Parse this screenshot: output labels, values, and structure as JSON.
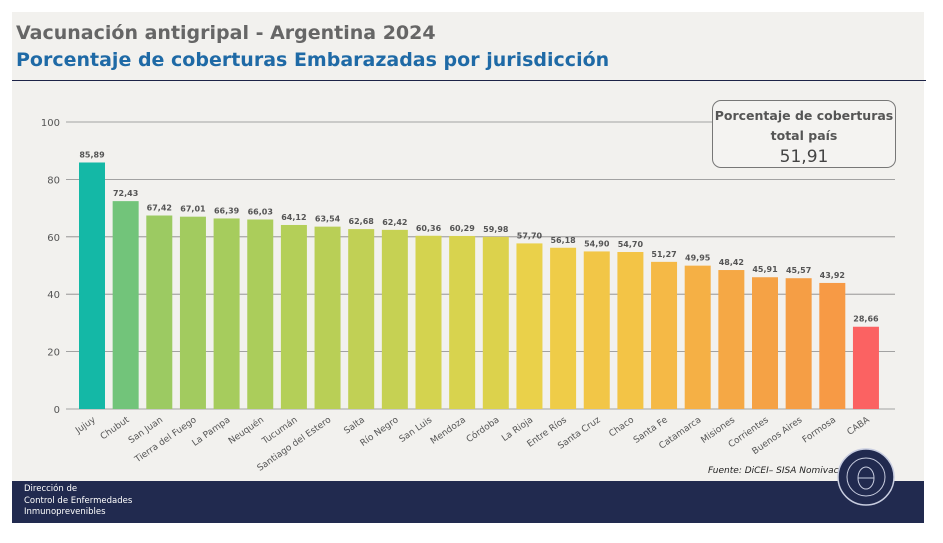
{
  "header": {
    "title": "Vacunación antigripal - Argentina 2024",
    "subtitle": "Porcentaje de coberturas Embarazadas por jurisdicción"
  },
  "kpi": {
    "label_line1": "Porcentaje de coberturas",
    "label_line2": "total país",
    "value": "51,91"
  },
  "source": "Fuente: DiCEI– SISA Nomivac",
  "footer": {
    "line1": "Dirección de",
    "line2": "Control de Enfermedades",
    "line3": "Inmunoprevenibles"
  },
  "seal": {
    "text": "MINISTERIO DE SALUD · REPÚBLICA ARGENTINA"
  },
  "chart_data": {
    "type": "bar",
    "ylim": [
      0,
      100
    ],
    "yticks": [
      0,
      20,
      40,
      60,
      80,
      100
    ],
    "grid": true,
    "categories": [
      "Jujuy",
      "Chubut",
      "San Juan",
      "Tierra del Fuego",
      "La Pampa",
      "Neuquén",
      "Tucumán",
      "Santiago del Estero",
      "Salta",
      "Río Negro",
      "San Luis",
      "Mendoza",
      "Córdoba",
      "La Rioja",
      "Entre Ríos",
      "Santa Cruz",
      "Chaco",
      "Santa Fe",
      "Catamarca",
      "Misiones",
      "Corrientes",
      "Buenos Aires",
      "Formosa",
      "CABA"
    ],
    "values": [
      85.89,
      72.43,
      67.42,
      67.01,
      66.39,
      66.03,
      64.12,
      63.54,
      62.68,
      62.42,
      60.36,
      60.29,
      59.98,
      57.7,
      56.18,
      54.9,
      54.7,
      51.27,
      49.95,
      48.42,
      45.91,
      45.57,
      43.92,
      28.66
    ],
    "labels": [
      "85,89",
      "72,43",
      "67,42",
      "67,01",
      "66,39",
      "66,03",
      "64,12",
      "63,54",
      "62,68",
      "62,42",
      "60,36",
      "60,29",
      "59,98",
      "57,70",
      "56,18",
      "54,90",
      "54,70",
      "51,27",
      "49,95",
      "48,42",
      "45,91",
      "45,57",
      "43,92",
      "28,66"
    ],
    "colors": [
      "#14b8a6",
      "#72c47a",
      "#9cca62",
      "#a2cb5f",
      "#a6cc5d",
      "#abcd5b",
      "#b4cf58",
      "#b9cf56",
      "#c1d055",
      "#c6d153",
      "#d4d34f",
      "#d8d34e",
      "#dcd24c",
      "#ead14a",
      "#efcc48",
      "#f2c647",
      "#f3c446",
      "#f5b946",
      "#f5b045",
      "#f5a845",
      "#f5a245",
      "#f59e45",
      "#f79a45",
      "#fb6262"
    ]
  }
}
